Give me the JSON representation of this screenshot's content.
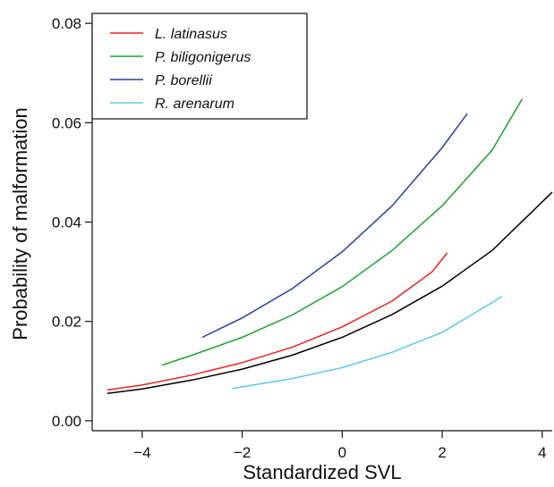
{
  "chart_data": {
    "type": "line",
    "title": "",
    "xlabel": "Standardized SVL",
    "ylabel": "Probability of malformation",
    "xlim": [
      -5.0,
      4.2
    ],
    "ylim": [
      -0.002,
      0.082
    ],
    "x_ticks": [
      -4,
      -2,
      0,
      2,
      4
    ],
    "x_tick_labels": [
      "−4",
      "−2",
      "0",
      "2",
      "4"
    ],
    "y_ticks": [
      0.0,
      0.02,
      0.04,
      0.06,
      0.08
    ],
    "y_tick_labels": [
      "0.00",
      "0.02",
      "0.04",
      "0.06",
      "0.08"
    ],
    "grid": false,
    "legend_position": "top-left",
    "series": [
      {
        "name": "L. latinasus",
        "color": "#e8231e",
        "in_legend": true,
        "x": [
          -4.7,
          -4.0,
          -3.0,
          -2.0,
          -1.0,
          0.0,
          1.0,
          1.8,
          2.1
        ],
        "y": [
          0.0062,
          0.0072,
          0.0092,
          0.0117,
          0.0148,
          0.0189,
          0.0241,
          0.03,
          0.0338
        ]
      },
      {
        "name": "P. biligonigerus",
        "color": "#1ea030",
        "in_legend": true,
        "x": [
          -3.6,
          -3.0,
          -2.0,
          -1.0,
          0.0,
          1.0,
          2.0,
          3.0,
          3.6
        ],
        "y": [
          0.0112,
          0.0132,
          0.0168,
          0.0213,
          0.027,
          0.0343,
          0.0433,
          0.0545,
          0.0648
        ]
      },
      {
        "name": "P. borellii",
        "color": "#2a3f9a",
        "in_legend": true,
        "x": [
          -2.8,
          -2.0,
          -1.0,
          0.0,
          1.0,
          2.0,
          2.5
        ],
        "y": [
          0.0168,
          0.0207,
          0.0266,
          0.034,
          0.0433,
          0.055,
          0.0618
        ]
      },
      {
        "name": "R. arenarum",
        "color": "#5bc8e8",
        "in_legend": true,
        "x": [
          -2.2,
          -1.0,
          0.0,
          1.0,
          2.0,
          3.2
        ],
        "y": [
          0.0065,
          0.0085,
          0.0107,
          0.0138,
          0.0178,
          0.025
        ]
      },
      {
        "name": "",
        "color": "#000000",
        "in_legend": false,
        "x": [
          -4.7,
          -4.0,
          -3.0,
          -2.0,
          -1.0,
          0.0,
          1.0,
          2.0,
          3.0,
          4.2
        ],
        "y": [
          0.0055,
          0.0064,
          0.0082,
          0.0104,
          0.0132,
          0.0168,
          0.0214,
          0.0271,
          0.0343,
          0.046
        ]
      }
    ]
  }
}
